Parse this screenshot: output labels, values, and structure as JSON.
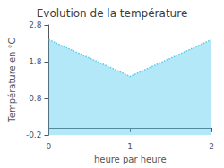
{
  "chart_data": {
    "type": "area",
    "title": "Evolution de la température",
    "xlabel": "heure par heure",
    "ylabel": "Température en °C",
    "x": [
      0,
      1,
      2
    ],
    "values": [
      2.4,
      1.4,
      2.4
    ],
    "color": "#55ccee",
    "line_style": "dotted",
    "xlim": [
      0,
      2
    ],
    "xticks": [
      0,
      1,
      2
    ],
    "ylim": [
      -0.2,
      2.8
    ],
    "yticks": [
      -0.2,
      0.8,
      1.8,
      2.8
    ],
    "grid": false
  }
}
